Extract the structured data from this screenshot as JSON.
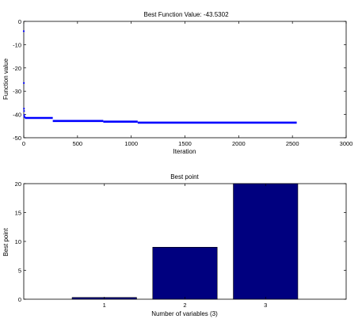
{
  "chart_data": [
    {
      "type": "scatter",
      "title": "Best Function Value: -43.5302",
      "xlabel": "Iteration",
      "ylabel": "Function value",
      "xlim": [
        0,
        3000
      ],
      "ylim": [
        -50,
        0
      ],
      "xticks": [
        "0",
        "500",
        "1000",
        "1500",
        "2000",
        "2500",
        "3000"
      ],
      "yticks": [
        "0",
        "-10",
        "-20",
        "-30",
        "-40",
        "-50"
      ],
      "marker_color": "#0000ff",
      "points": [
        {
          "x": 0,
          "y": -4.2
        },
        {
          "x": 1,
          "y": -26.5
        },
        {
          "x": 2,
          "y": -37.5
        },
        {
          "x": 3,
          "y": -38.5
        },
        {
          "x": 4,
          "y": -40.2
        },
        {
          "x": 5,
          "y": -40.9
        },
        {
          "x": 8,
          "y": -41.1
        }
      ],
      "segments": [
        {
          "x0": 10,
          "x1": 270,
          "y": -41.5
        },
        {
          "x0": 270,
          "x1": 740,
          "y": -42.8
        },
        {
          "x0": 740,
          "x1": 1060,
          "y": -43.1
        },
        {
          "x0": 1060,
          "x1": 2540,
          "y": -43.5
        }
      ]
    },
    {
      "type": "bar",
      "title": "Best point",
      "xlabel": "Number of variables (3)",
      "ylabel": "Best point",
      "categories": [
        "1",
        "2",
        "3"
      ],
      "values": [
        0.3,
        9.0,
        20.0
      ],
      "ylim": [
        0,
        20
      ],
      "yticks": [
        "0",
        "5",
        "10",
        "15",
        "20"
      ],
      "bar_color": "#00007f"
    }
  ]
}
